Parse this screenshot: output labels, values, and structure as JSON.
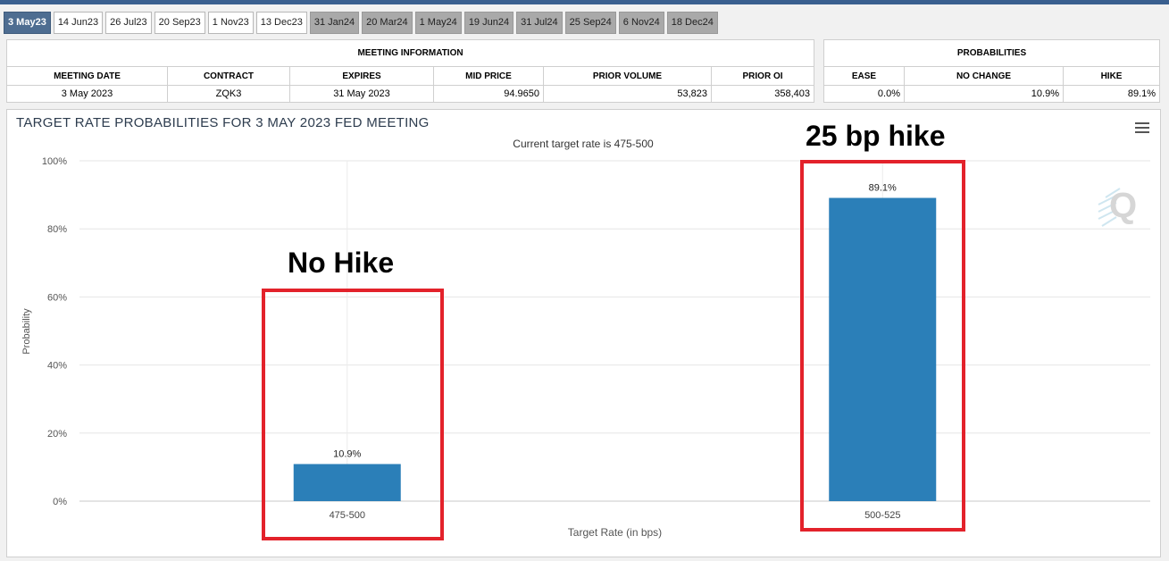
{
  "tabs": [
    {
      "label": "3 May23",
      "state": "active"
    },
    {
      "label": "14 Jun23",
      "state": "normal"
    },
    {
      "label": "26 Jul23",
      "state": "normal"
    },
    {
      "label": "20 Sep23",
      "state": "normal"
    },
    {
      "label": "1 Nov23",
      "state": "normal"
    },
    {
      "label": "13 Dec23",
      "state": "normal"
    },
    {
      "label": "31 Jan24",
      "state": "future"
    },
    {
      "label": "20 Mar24",
      "state": "future"
    },
    {
      "label": "1 May24",
      "state": "future"
    },
    {
      "label": "19 Jun24",
      "state": "future"
    },
    {
      "label": "31 Jul24",
      "state": "future"
    },
    {
      "label": "25 Sep24",
      "state": "future"
    },
    {
      "label": "6 Nov24",
      "state": "future"
    },
    {
      "label": "18 Dec24",
      "state": "future"
    }
  ],
  "meeting_info": {
    "title": "MEETING INFORMATION",
    "headers": [
      "MEETING DATE",
      "CONTRACT",
      "EXPIRES",
      "MID PRICE",
      "PRIOR VOLUME",
      "PRIOR OI"
    ],
    "row": [
      "3 May 2023",
      "ZQK3",
      "31 May 2023",
      "94.9650",
      "53,823",
      "358,403"
    ]
  },
  "probabilities": {
    "title": "PROBABILITIES",
    "headers": [
      "EASE",
      "NO CHANGE",
      "HIKE"
    ],
    "row": [
      "0.0%",
      "10.9%",
      "89.1%"
    ]
  },
  "chart": {
    "title": "TARGET RATE PROBABILITIES FOR 3 MAY 2023 FED MEETING",
    "subtitle": "Current target rate is 475-500"
  },
  "annotations": {
    "no_hike": "No Hike",
    "hike": "25 bp hike"
  },
  "colors": {
    "bar": "#2b7fb8",
    "annotation_box": "#e3222b",
    "active_tab": "#4e6d91"
  },
  "chart_data": {
    "type": "bar",
    "categories": [
      "475-500",
      "500-525"
    ],
    "values": [
      10.9,
      89.1
    ],
    "value_labels": [
      "10.9%",
      "89.1%"
    ],
    "xlabel": "Target Rate (in bps)",
    "ylabel": "Probability",
    "ylim": [
      0,
      100
    ],
    "yticks": [
      "0%",
      "20%",
      "40%",
      "60%",
      "80%",
      "100%"
    ],
    "grid": true
  }
}
